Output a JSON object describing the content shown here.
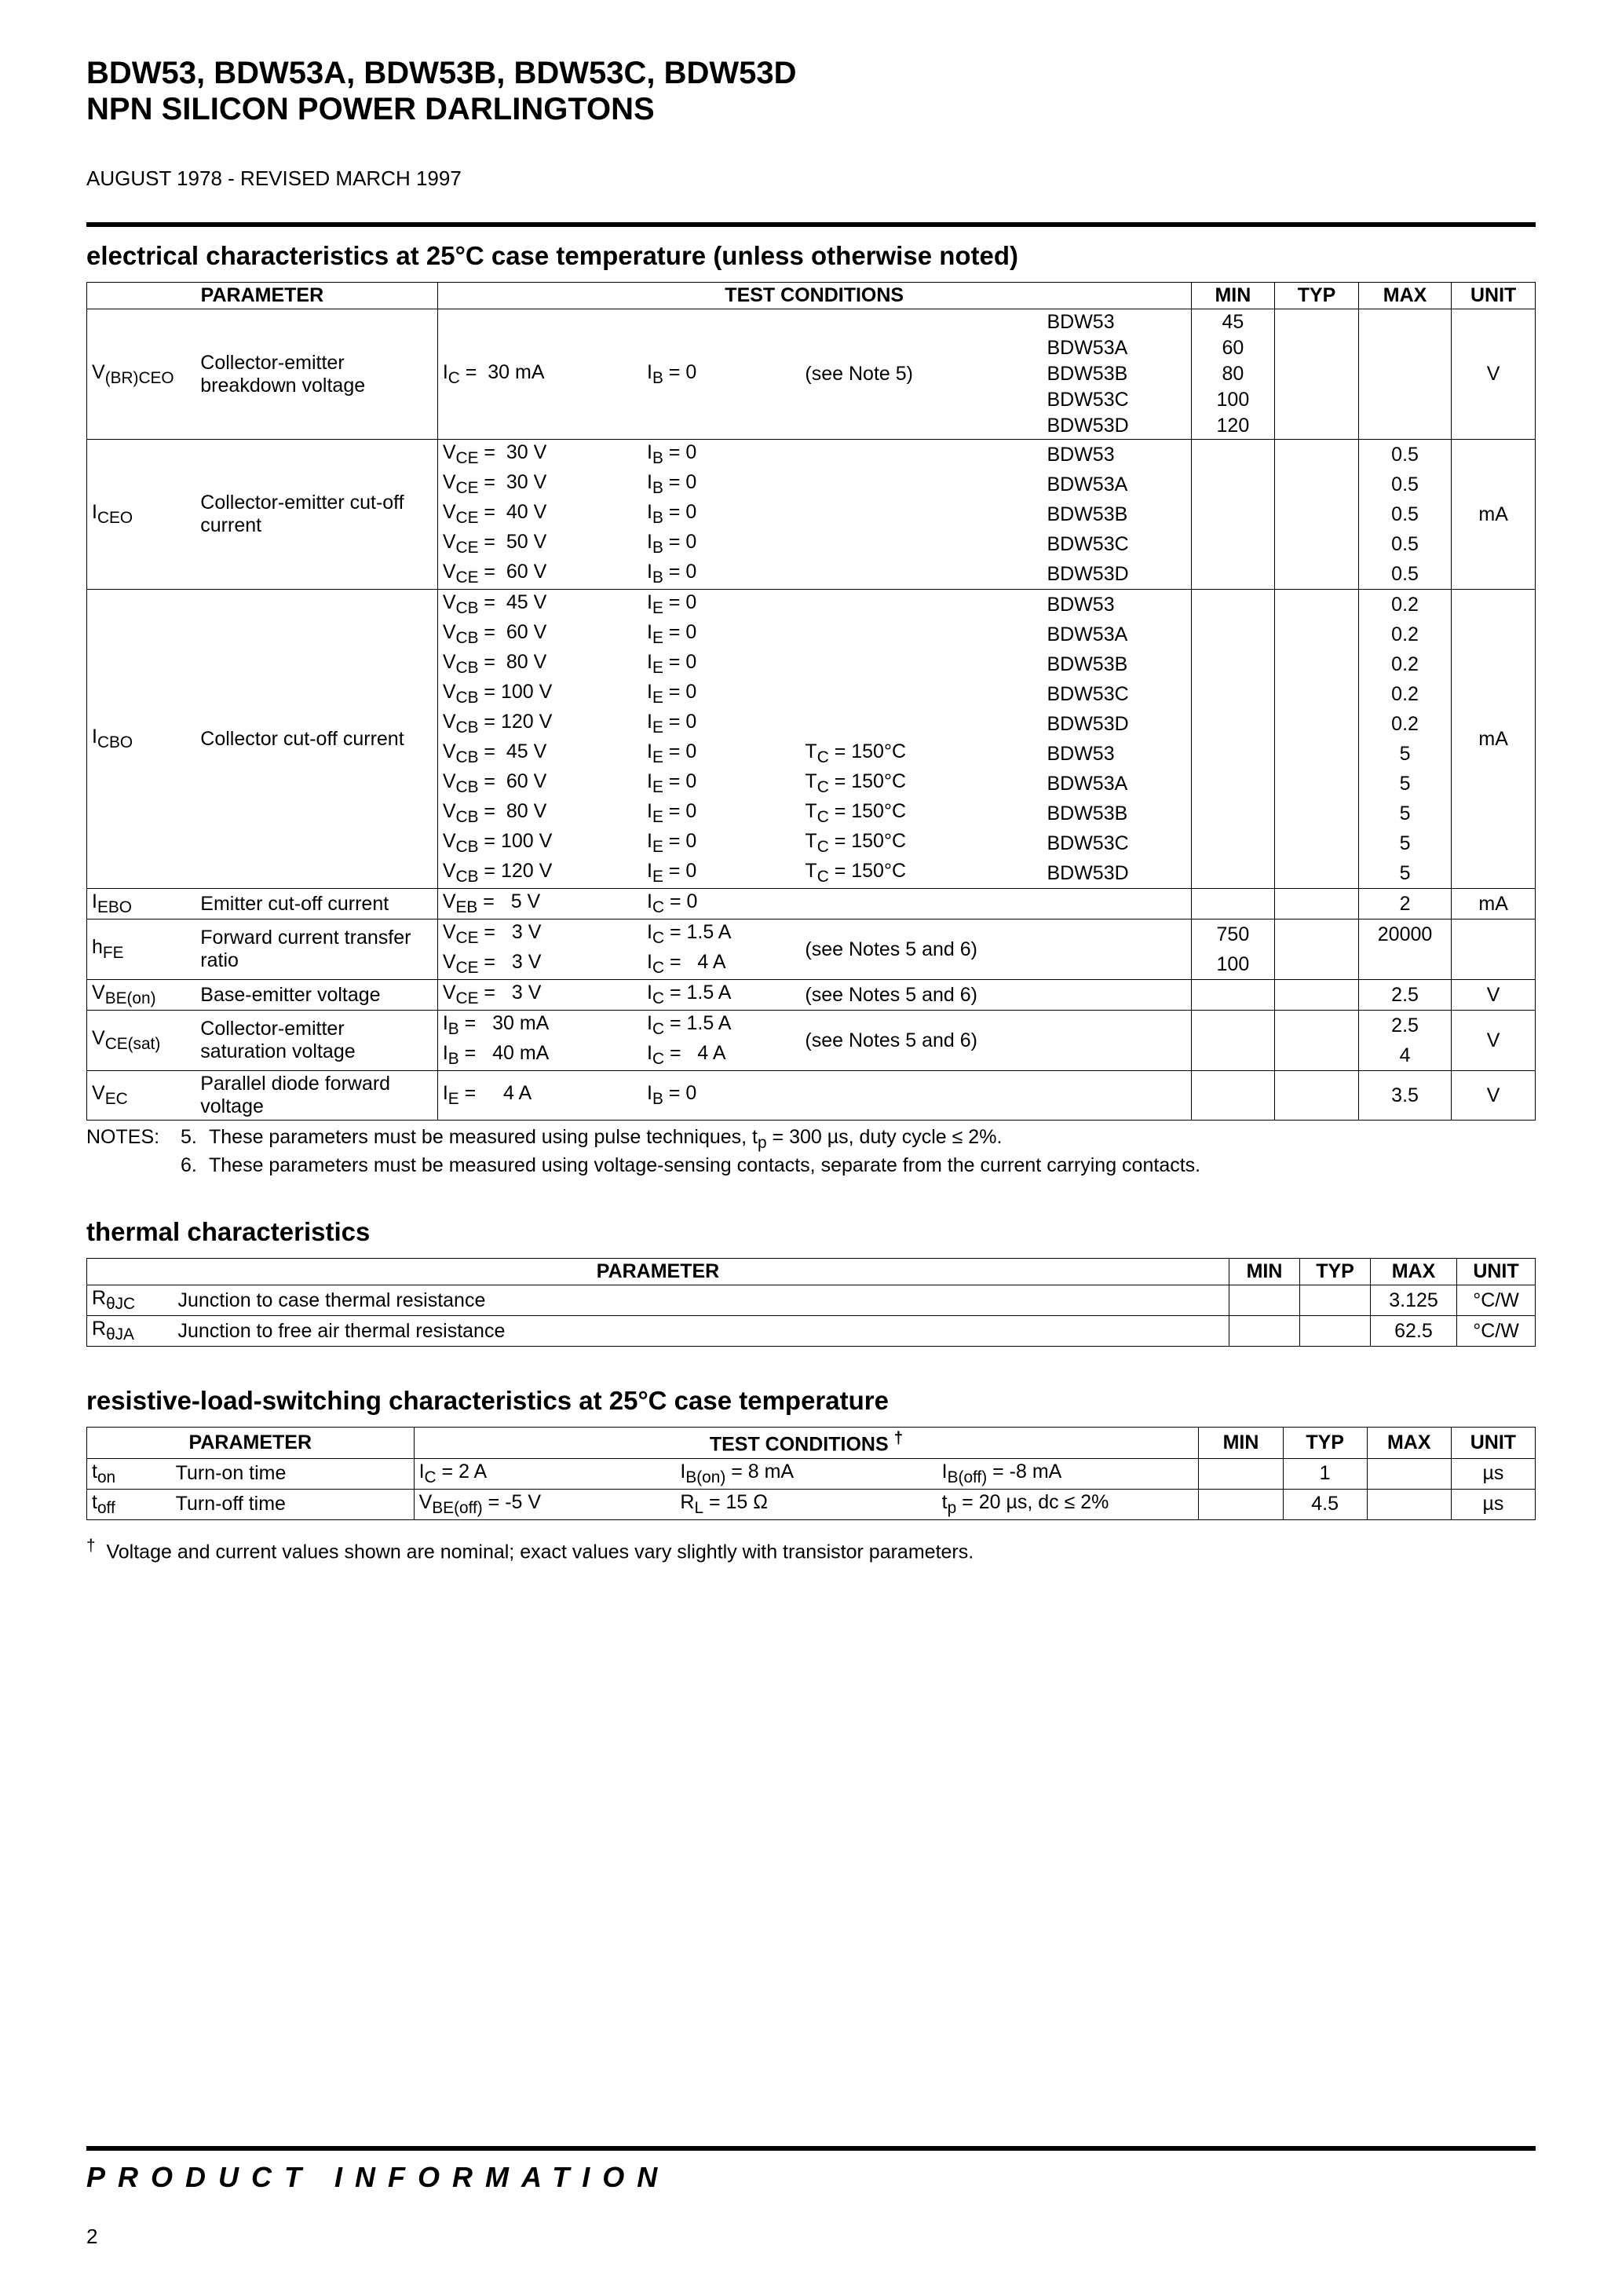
{
  "header": {
    "line1": "BDW53, BDW53A, BDW53B, BDW53C, BDW53D",
    "line2": "NPN SILICON POWER DARLINGTONS",
    "revision": "AUGUST 1978 - REVISED MARCH 1997"
  },
  "section1_heading": "electrical characteristics at 25°C case temperature (unless otherwise noted)",
  "t1_headers": {
    "parameter": "PARAMETER",
    "test_conditions": "TEST CONDITIONS",
    "min": "MIN",
    "typ": "TYP",
    "max": "MAX",
    "unit": "UNIT"
  },
  "vbrceo": {
    "symbol_html": "V<sub>(BR)CEO</sub>",
    "desc": "Collector-emitter breakdown voltage",
    "cond1_html": "I<sub>C</sub> =&nbsp;&nbsp;30 mA",
    "cond2_html": "I<sub>B</sub> = 0",
    "cond3": "(see Note 5)",
    "parts": [
      "BDW53",
      "BDW53A",
      "BDW53B",
      "BDW53C",
      "BDW53D"
    ],
    "mins": [
      "45",
      "60",
      "80",
      "100",
      "120"
    ],
    "unit": "V"
  },
  "iceo": {
    "symbol_html": "I<sub>CEO</sub>",
    "desc": "Collector-emitter cut-off current",
    "cond1_html": [
      "V<sub>CE</sub> =&nbsp;&nbsp;30 V",
      "V<sub>CE</sub> =&nbsp;&nbsp;30 V",
      "V<sub>CE</sub> =&nbsp;&nbsp;40 V",
      "V<sub>CE</sub> =&nbsp;&nbsp;50 V",
      "V<sub>CE</sub> =&nbsp;&nbsp;60 V"
    ],
    "cond2_html": "I<sub>B</sub> = 0",
    "parts": [
      "BDW53",
      "BDW53A",
      "BDW53B",
      "BDW53C",
      "BDW53D"
    ],
    "max": "0.5",
    "unit": "mA"
  },
  "icbo": {
    "symbol_html": "I<sub>CBO</sub>",
    "desc": "Collector cut-off current",
    "cond1_html": [
      "V<sub>CB</sub> =&nbsp;&nbsp;45 V",
      "V<sub>CB</sub> =&nbsp;&nbsp;60 V",
      "V<sub>CB</sub> =&nbsp;&nbsp;80 V",
      "V<sub>CB</sub> = 100 V",
      "V<sub>CB</sub> = 120 V",
      "V<sub>CB</sub> =&nbsp;&nbsp;45 V",
      "V<sub>CB</sub> =&nbsp;&nbsp;60 V",
      "V<sub>CB</sub> =&nbsp;&nbsp;80 V",
      "V<sub>CB</sub> = 100 V",
      "V<sub>CB</sub> = 120 V"
    ],
    "cond2_html": "I<sub>E</sub> = 0",
    "cond3_html": "T<sub>C</sub> = 150°C",
    "parts": [
      "BDW53",
      "BDW53A",
      "BDW53B",
      "BDW53C",
      "BDW53D",
      "BDW53",
      "BDW53A",
      "BDW53B",
      "BDW53C",
      "BDW53D"
    ],
    "maxes": [
      "0.2",
      "0.2",
      "0.2",
      "0.2",
      "0.2",
      "5",
      "5",
      "5",
      "5",
      "5"
    ],
    "unit": "mA"
  },
  "iebo": {
    "symbol_html": "I<sub>EBO</sub>",
    "desc": "Emitter cut-off current",
    "cond1_html": "V<sub>EB</sub> =&nbsp;&nbsp;&nbsp;5 V",
    "cond2_html": "I<sub>C</sub> = 0",
    "max": "2",
    "unit": "mA"
  },
  "hfe": {
    "symbol_html": "h<sub>FE</sub>",
    "desc": "Forward current transfer ratio",
    "cond1_html": [
      "V<sub>CE</sub> =&nbsp;&nbsp;&nbsp;3 V",
      "V<sub>CE</sub> =&nbsp;&nbsp;&nbsp;3 V"
    ],
    "cond2_html": [
      "I<sub>C</sub> = 1.5 A",
      "I<sub>C</sub> =&nbsp;&nbsp;&nbsp;4 A"
    ],
    "cond3": "(see Notes 5 and 6)",
    "mins": [
      "750",
      "100"
    ],
    "max1": "20000"
  },
  "vbeon": {
    "symbol_html": "V<sub>BE(on)</sub>",
    "desc": "Base-emitter voltage",
    "cond1_html": "V<sub>CE</sub> =&nbsp;&nbsp;&nbsp;3 V",
    "cond2_html": "I<sub>C</sub> = 1.5 A",
    "cond3": "(see Notes 5 and 6)",
    "max": "2.5",
    "unit": "V"
  },
  "vcesat": {
    "symbol_html": "V<sub>CE(sat)</sub>",
    "desc": "Collector-emitter saturation voltage",
    "cond1_html": [
      "I<sub>B</sub> =&nbsp;&nbsp;&nbsp;30 mA",
      "I<sub>B</sub> =&nbsp;&nbsp;&nbsp;40 mA"
    ],
    "cond2_html": [
      "I<sub>C</sub> = 1.5 A",
      "I<sub>C</sub> =&nbsp;&nbsp;&nbsp;4 A"
    ],
    "cond3": "(see Notes 5 and 6)",
    "maxes": [
      "2.5",
      "4"
    ],
    "unit": "V"
  },
  "vec": {
    "symbol_html": "V<sub>EC</sub>",
    "desc": "Parallel diode forward voltage",
    "cond1_html": "I<sub>E</sub> =&nbsp;&nbsp;&nbsp;&nbsp;&nbsp;4 A",
    "cond2_html": "I<sub>B</sub> = 0",
    "max": "3.5",
    "unit": "V"
  },
  "notes": {
    "lead": "NOTES:",
    "n5_num": "5.",
    "n5_html": "These parameters must be measured using pulse techniques, t<sub>p</sub> = 300 µs, duty cycle ≤ 2%.",
    "n6_num": "6.",
    "n6": "These parameters must be measured using voltage-sensing contacts, separate from the current carrying contacts."
  },
  "section2_heading": "thermal characteristics",
  "t2_headers": {
    "parameter": "PARAMETER",
    "min": "MIN",
    "typ": "TYP",
    "max": "MAX",
    "unit": "UNIT"
  },
  "thermal_rows": [
    {
      "sym_html": "R<sub>θJC</sub>",
      "desc": "Junction to case thermal resistance",
      "max": "3.125",
      "unit": "°C/W"
    },
    {
      "sym_html": "R<sub>θJA</sub>",
      "desc": "Junction to free air thermal resistance",
      "max": "62.5",
      "unit": "°C/W"
    }
  ],
  "section3_heading": "resistive-load-switching characteristics at 25°C case temperature",
  "t3_headers": {
    "parameter": "PARAMETER",
    "tc_html": "TEST CONDITIONS <sup>†</sup>",
    "min": "MIN",
    "typ": "TYP",
    "max": "MAX",
    "unit": "UNIT"
  },
  "switch_rows": [
    {
      "sym_html": "t<sub>on</sub>",
      "desc": "Turn-on time",
      "c1_html": "I<sub>C</sub> = 2 A",
      "c2_html": "I<sub>B(on)</sub> = 8 mA",
      "c3_html": "I<sub>B(off)</sub> = -8 mA",
      "typ": "1",
      "unit": "µs"
    },
    {
      "sym_html": "t<sub>off</sub>",
      "desc": "Turn-off time",
      "c1_html": "V<sub>BE(off)</sub> = -5 V",
      "c2_html": "R<sub>L</sub> = 15 Ω",
      "c3_html": "t<sub>p</sub> = 20 µs, dc ≤ 2%",
      "typ": "4.5",
      "unit": "µs"
    }
  ],
  "footnote_html": "<sup>†</sup>&nbsp; Voltage and current values shown are nominal; exact values vary slightly with transistor parameters.",
  "footer_bar": "PRODUCT INFORMATION",
  "page_number": "2"
}
